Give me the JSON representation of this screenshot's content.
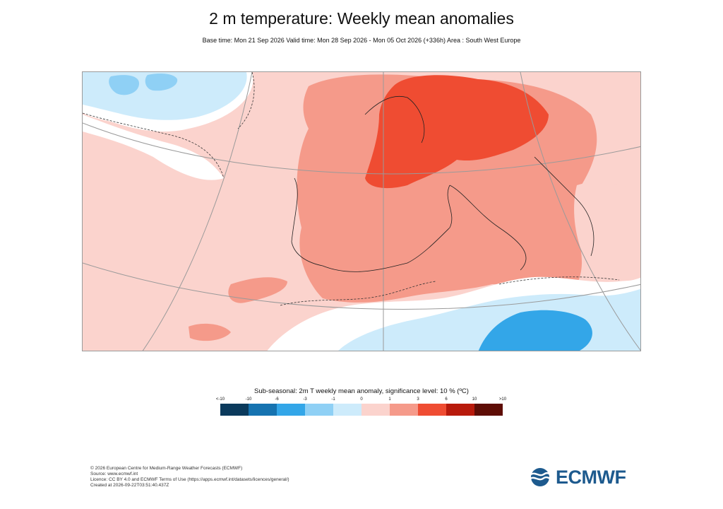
{
  "title": "2 m temperature: Weekly mean anomalies",
  "subtitle": "Base time: Mon 21 Sep 2026 Valid time: Mon 28 Sep 2026 - Mon 05 Oct 2026 (+336h) Area : South West Europe",
  "legend": {
    "title": "Sub-seasonal: 2m T weekly mean anomaly, significance level: 10 % (ºC)",
    "tick_labels": [
      "<-10",
      "-10",
      "-6",
      "-3",
      "-1",
      "0",
      "1",
      "3",
      "6",
      "10",
      ">10"
    ],
    "colors": [
      "#0b3a5c",
      "#1673b0",
      "#33a6e8",
      "#8fd0f5",
      "#cdebfb",
      "#fbd3cd",
      "#f59a8a",
      "#ef4c32",
      "#b81a0c",
      "#5e0d06"
    ]
  },
  "footer": {
    "copyright": "© 2026 European Centre for Medium-Range Weather Forecasts (ECMWF)",
    "source": "Source: www.ecmwf.int",
    "licence": "Licence: CC BY 4.0 and ECMWF Terms of Use (https://apps.ecmwf.int/datasets/licences/general/)",
    "created": "Created at 2026-09-22T03:51:40.437Z"
  },
  "logo": {
    "text": "ECMWF"
  }
}
